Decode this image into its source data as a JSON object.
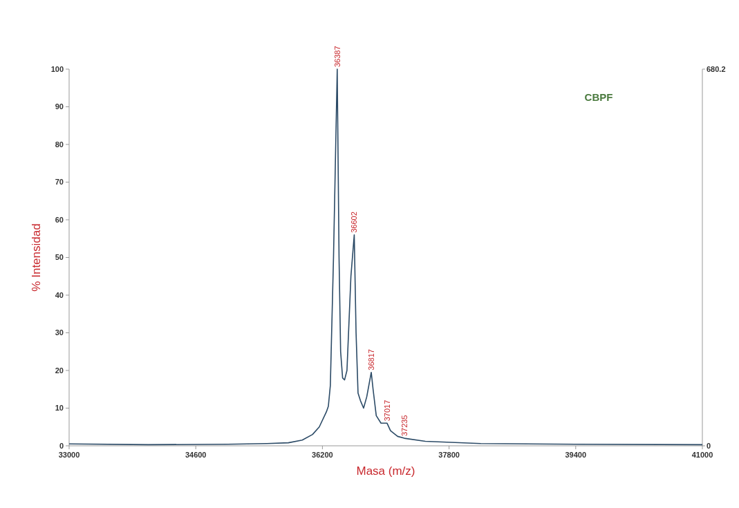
{
  "chart_data": {
    "type": "line",
    "xlabel": "Masa (m/z)",
    "ylabel": "% Intensidad",
    "xlim": [
      33000,
      41000
    ],
    "xticks": [
      33000,
      34600,
      36200,
      37800,
      39400,
      41000
    ],
    "ylim": [
      0,
      100
    ],
    "yticks": [
      0,
      10,
      20,
      30,
      40,
      50,
      60,
      70,
      80,
      90,
      100
    ],
    "y2lim": [
      0,
      680.2
    ],
    "y2ticks": [
      0,
      680.2
    ],
    "grid": false,
    "series": [
      {
        "color": "#2b4a66",
        "x": [
          33000,
          34000,
          35000,
          35500,
          35770,
          35945,
          36075,
          36160,
          36250,
          36275,
          36300,
          36340,
          36387,
          36410,
          36430,
          36455,
          36480,
          36510,
          36560,
          36602,
          36625,
          36650,
          36680,
          36720,
          36760,
          36817,
          36840,
          36880,
          36940,
          37017,
          37060,
          37150,
          37235,
          37500,
          38200,
          39400,
          41000
        ],
        "values": [
          0.5,
          0.3,
          0.4,
          0.6,
          0.8,
          1.5,
          3,
          5,
          9,
          10.5,
          16,
          50,
          100,
          50,
          25,
          18,
          17.5,
          20,
          45,
          56,
          30,
          14,
          12,
          10,
          13,
          19.5,
          15,
          8,
          6,
          6,
          4,
          2.5,
          2,
          1.2,
          0.6,
          0.4,
          0.3
        ]
      }
    ],
    "annotations": [
      {
        "text": "36387",
        "x": 36387,
        "y": 100
      },
      {
        "text": "36602",
        "x": 36602,
        "y": 56
      },
      {
        "text": "36817",
        "x": 36817,
        "y": 19.5
      },
      {
        "text": "37017",
        "x": 37017,
        "y": 6
      },
      {
        "text": "37235",
        "x": 37235,
        "y": 2
      },
      "CBPF"
    ]
  }
}
